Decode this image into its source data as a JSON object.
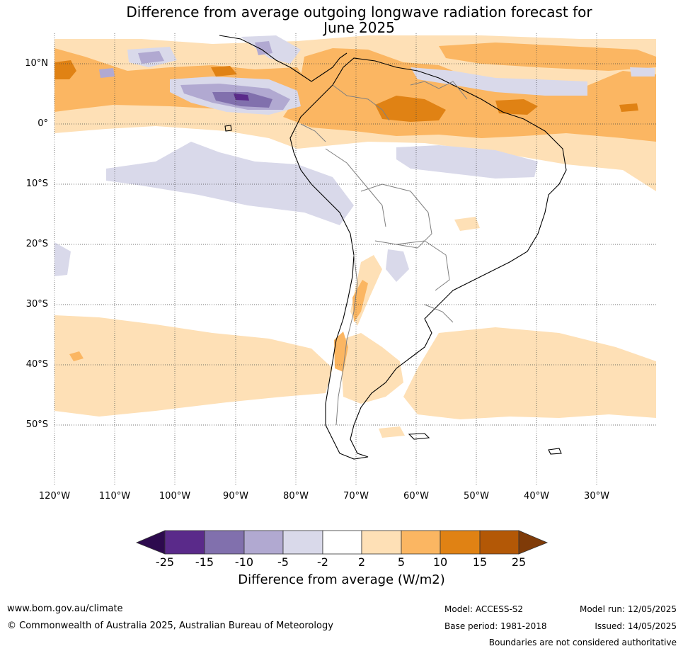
{
  "title": {
    "line1": "Difference from average outgoing longwave radiation forecast for",
    "line2": "June 2025"
  },
  "map": {
    "lat_labels": [
      "10°N",
      "0°",
      "10°S",
      "20°S",
      "30°S",
      "40°S",
      "50°S"
    ],
    "lon_labels": [
      "120°W",
      "110°W",
      "100°W",
      "90°W",
      "80°W",
      "70°W",
      "60°W",
      "50°W",
      "40°W",
      "30°W"
    ]
  },
  "colorbar": {
    "ticks": [
      "-25",
      "-15",
      "-10",
      "-5",
      "-2",
      "2",
      "5",
      "10",
      "15",
      "25"
    ],
    "colors": [
      "#2d0a4e",
      "#5a2a8a",
      "#8170ad",
      "#b1a9d1",
      "#d9d9ea",
      "#ffffff",
      "#fee0b6",
      "#fbb662",
      "#e08214",
      "#b35806",
      "#7f3b08"
    ],
    "label": "Difference from average (W/m2)"
  },
  "footer": {
    "website": "www.bom.gov.au/climate",
    "copyright": "© Commonwealth of Australia 2025, Australian Bureau of Meteorology",
    "model": "Model: ACCESS-S2",
    "base_period": "Base period: 1981-2018",
    "model_run": "Model run: 12/05/2025",
    "issued": "Issued: 14/05/2025",
    "disclaimer": "Boundaries are not considered authoritative"
  }
}
